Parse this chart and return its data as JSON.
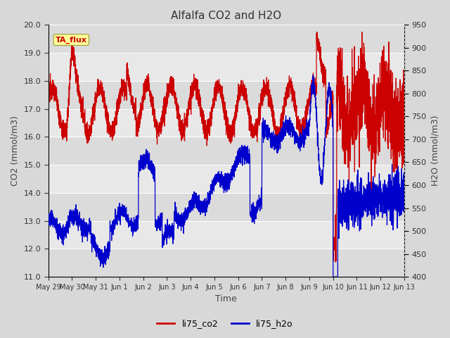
{
  "title": "Alfalfa CO2 and H2O",
  "xlabel": "Time",
  "ylabel_left": "CO2 (mmol/m3)",
  "ylabel_right": "H2O (mmol/m3)",
  "ylim_left": [
    11.0,
    20.0
  ],
  "ylim_right": [
    400,
    950
  ],
  "yticks_left": [
    11.0,
    12.0,
    13.0,
    14.0,
    15.0,
    16.0,
    17.0,
    18.0,
    19.0,
    20.0
  ],
  "yticks_right": [
    400,
    450,
    500,
    550,
    600,
    650,
    700,
    750,
    800,
    850,
    900,
    950
  ],
  "color_co2": "#cc0000",
  "color_h2o": "#0000cc",
  "annotation_text": "TA_flux",
  "annotation_color": "#cc0000",
  "annotation_bg": "#ffff99",
  "legend_labels": [
    "li75_co2",
    "li75_h2o"
  ],
  "fig_bg": "#d8d8d8",
  "plot_bg": "#e8e8e8",
  "x_start_days": 0,
  "x_end_days": 15.0,
  "xtick_labels": [
    "May 29",
    "May 30",
    "May 31",
    "Jun 1",
    "Jun 2",
    "Jun 3",
    "Jun 4",
    "Jun 5",
    "Jun 6",
    "Jun 7",
    "Jun 8",
    "Jun 9",
    "Jun 10",
    "Jun 11",
    "Jun 12",
    "Jun 13"
  ],
  "xtick_positions": [
    0,
    1,
    2,
    3,
    4,
    5,
    6,
    7,
    8,
    9,
    10,
    11,
    12,
    13,
    14,
    15
  ]
}
